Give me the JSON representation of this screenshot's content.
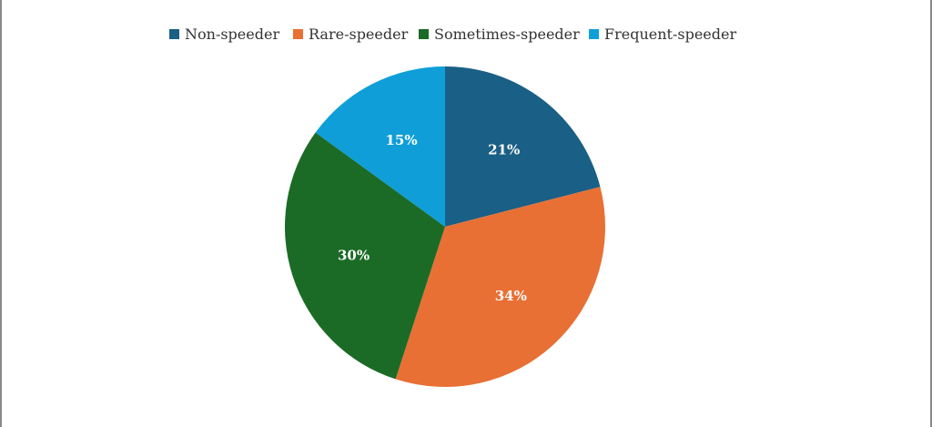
{
  "chart_data": {
    "type": "pie",
    "title": "",
    "categories": [
      "Non-speeder",
      "Rare-speeder",
      "Sometimes-speeder",
      "Frequent-speeder"
    ],
    "values": [
      21,
      34,
      30,
      15
    ],
    "labels": [
      "21%",
      "34%",
      "30%",
      "15%"
    ],
    "colors": [
      "#1a5f85",
      "#e87035",
      "#1b6b27",
      "#0f9ed8"
    ],
    "legend_position": "top",
    "start": "12 o'clock",
    "direction": "clockwise"
  }
}
